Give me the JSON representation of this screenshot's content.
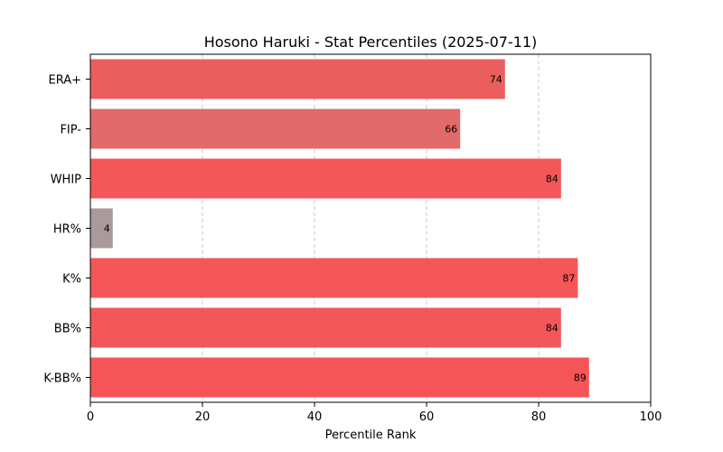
{
  "chart_data": {
    "type": "bar",
    "orientation": "horizontal",
    "title": "Hosono Haruki - Stat Percentiles (2025-07-11)",
    "xlabel": "Percentile Rank",
    "ylabel": "",
    "xlim": [
      0,
      100
    ],
    "xticks": [
      0,
      20,
      40,
      60,
      80,
      100
    ],
    "grid": "x-dashed",
    "categories": [
      "ERA+",
      "FIP-",
      "WHIP",
      "HR%",
      "K%",
      "BB%",
      "K-BB%"
    ],
    "values": [
      74,
      66,
      84,
      4,
      87,
      84,
      89
    ],
    "colors": [
      "#eb5e5e",
      "#e26a6a",
      "#f45759",
      "#ab9a9b",
      "#f55658",
      "#f45759",
      "#f55557"
    ]
  }
}
